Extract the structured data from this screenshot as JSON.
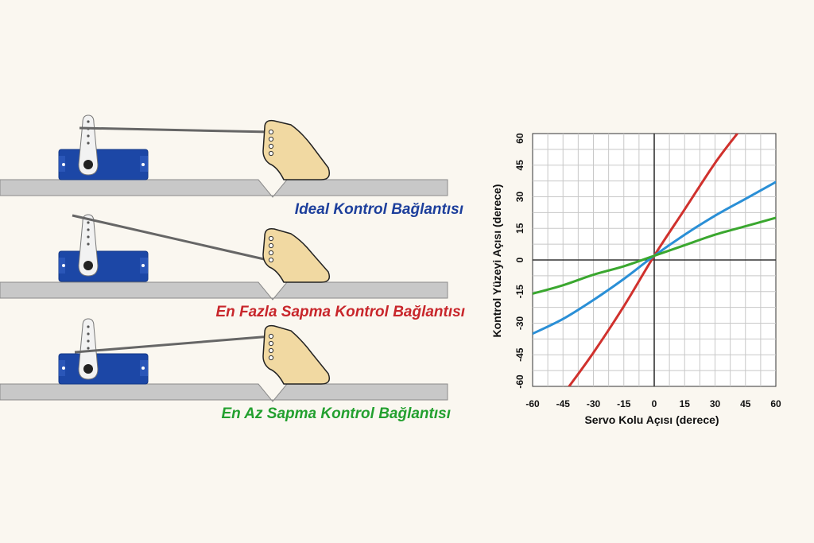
{
  "panels": [
    {
      "caption": "Ideal Kontrol Bağlantısı",
      "color": "#1d3f9c"
    },
    {
      "caption": "En Fazla Sapma Kontrol Bağlantısı",
      "color": "#c8262b"
    },
    {
      "caption": "En Az Sapma Kontrol Bağlantısı",
      "color": "#23a02f"
    }
  ],
  "colors": {
    "servo_body": "#1c47a6",
    "servo_dark": "#123786",
    "horn": "#f2f2f2",
    "control_horn": "#f1d9a2",
    "surface": "#c8c8c8",
    "pushrod": "#666666",
    "grid": "#c8c8c8"
  },
  "chart_data": {
    "type": "line",
    "xlabel": "Servo Kolu Açısı (derece)",
    "ylabel": "Kontrol Yüzeyi Açısı (derece)",
    "xlim": [
      -60,
      60
    ],
    "ylim": [
      -60,
      60
    ],
    "xticks": [
      "-60",
      "-45",
      "-30",
      "-15",
      "0",
      "15",
      "30",
      "45",
      "60"
    ],
    "yticks": [
      "60",
      "45",
      "30",
      "15",
      "0",
      "-15",
      "-30",
      "-45",
      "-60"
    ],
    "grid": true,
    "series": [
      {
        "color": "#d0312d",
        "x": [
          -42,
          -30,
          -15,
          0,
          15,
          30,
          41
        ],
        "y": [
          -60,
          -44,
          -22,
          2,
          24,
          46,
          60
        ]
      },
      {
        "color": "#2a8fd6",
        "x": [
          -60,
          -45,
          -30,
          -15,
          0,
          15,
          30,
          45,
          60
        ],
        "y": [
          -35,
          -28,
          -19,
          -9,
          2,
          12,
          21,
          29,
          37
        ]
      },
      {
        "color": "#3aa72f",
        "x": [
          -60,
          -45,
          -30,
          -15,
          0,
          15,
          30,
          45,
          60
        ],
        "y": [
          -16,
          -12,
          -7,
          -3,
          2,
          7,
          12,
          16,
          20
        ]
      }
    ]
  }
}
